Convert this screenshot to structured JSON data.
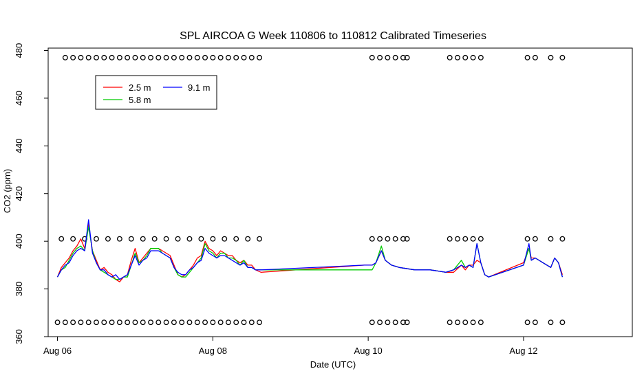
{
  "chart_data": {
    "type": "line",
    "title": "SPL AIRCOA G  Week 110806 to 110812  Calibrated Timeseries",
    "xlabel": "Date (UTC)",
    "ylabel": "CO2 (ppm)",
    "xlim": [
      -0.12,
      7.4
    ],
    "ylim": [
      360,
      481
    ],
    "x_units": "days since Aug 06 00:00 UTC",
    "xticks": [
      {
        "value": 0,
        "label": "Aug 06"
      },
      {
        "value": 2,
        "label": "Aug 08"
      },
      {
        "value": 4,
        "label": "Aug 10"
      },
      {
        "value": 6,
        "label": "Aug 12"
      }
    ],
    "yticks": [
      360,
      380,
      400,
      420,
      440,
      460,
      480
    ],
    "grid": false,
    "legend": {
      "placement": "top-left"
    },
    "colors": {
      "2.5 m": "#ff0000",
      "5.8 m": "#00cc00",
      "9.1 m": "#0000ff"
    },
    "series": [
      {
        "name": "2.5 m",
        "x": [
          0.0,
          0.05,
          0.1,
          0.15,
          0.2,
          0.25,
          0.3,
          0.35,
          0.4,
          0.45,
          0.5,
          0.55,
          0.6,
          0.65,
          0.7,
          0.75,
          0.8,
          0.85,
          0.9,
          0.95,
          1.0,
          1.05,
          1.1,
          1.15,
          1.2,
          1.25,
          1.3,
          1.35,
          1.4,
          1.45,
          1.5,
          1.55,
          1.6,
          1.65,
          1.7,
          1.75,
          1.8,
          1.85,
          1.9,
          1.95,
          2.0,
          2.05,
          2.1,
          2.15,
          2.2,
          2.25,
          2.3,
          2.35,
          2.4,
          2.45,
          2.5,
          2.55,
          2.62,
          3.95,
          4.05,
          4.1,
          4.17,
          4.22,
          4.3,
          4.4,
          4.6,
          4.8,
          5.0,
          5.1,
          5.2,
          5.25,
          5.3,
          5.35,
          5.4,
          5.45,
          5.5,
          5.55,
          6.0,
          6.07,
          6.1,
          6.15,
          6.25,
          6.35,
          6.4,
          6.45,
          6.5
        ],
        "y": [
          385,
          389,
          391,
          393,
          396,
          398,
          401,
          397,
          407,
          396,
          392,
          388,
          389,
          387,
          386,
          384,
          383,
          385,
          386,
          392,
          397,
          391,
          393,
          395,
          397,
          397,
          397,
          396,
          395,
          394,
          390,
          386,
          385,
          386,
          388,
          390,
          393,
          394,
          400,
          397,
          396,
          394,
          396,
          395,
          394,
          394,
          392,
          391,
          392,
          390,
          390,
          388,
          387,
          390,
          390,
          391,
          396,
          392,
          390,
          389,
          388,
          388,
          387,
          387,
          390,
          388,
          390,
          390,
          392,
          391,
          386,
          385,
          391,
          397,
          393,
          393,
          391,
          389,
          393,
          391,
          386
        ]
      },
      {
        "name": "5.8 m",
        "x": [
          0.0,
          0.05,
          0.1,
          0.15,
          0.2,
          0.25,
          0.3,
          0.35,
          0.4,
          0.45,
          0.5,
          0.55,
          0.6,
          0.65,
          0.7,
          0.75,
          0.8,
          0.85,
          0.9,
          0.95,
          1.0,
          1.05,
          1.1,
          1.15,
          1.2,
          1.25,
          1.3,
          1.35,
          1.4,
          1.45,
          1.5,
          1.55,
          1.6,
          1.65,
          1.7,
          1.75,
          1.8,
          1.85,
          1.9,
          1.95,
          2.0,
          2.05,
          2.1,
          2.15,
          2.2,
          2.25,
          2.3,
          2.35,
          2.4,
          2.45,
          2.5,
          2.55,
          2.62,
          3.95,
          4.05,
          4.1,
          4.17,
          4.22,
          4.3,
          4.4,
          4.6,
          4.8,
          5.0,
          5.1,
          5.2,
          5.25,
          5.3,
          5.35,
          5.4,
          5.45,
          5.5,
          5.55,
          6.0,
          6.07,
          6.1,
          6.15,
          6.25,
          6.35,
          6.4,
          6.45,
          6.5
        ],
        "y": [
          385,
          388,
          389,
          392,
          395,
          397,
          398,
          396,
          406,
          396,
          391,
          388,
          387,
          386,
          385,
          384,
          384,
          385,
          385,
          390,
          395,
          391,
          392,
          394,
          397,
          397,
          397,
          395,
          394,
          393,
          389,
          386,
          385,
          385,
          387,
          389,
          391,
          393,
          399,
          396,
          395,
          393,
          395,
          395,
          393,
          393,
          392,
          390,
          392,
          389,
          389,
          388,
          388,
          388,
          388,
          391,
          398,
          392,
          390,
          389,
          388,
          388,
          387,
          388,
          392,
          389,
          390,
          389,
          399,
          391,
          386,
          385,
          390,
          397,
          392,
          393,
          391,
          389,
          393,
          391,
          385
        ]
      },
      {
        "name": "9.1 m",
        "x": [
          0.0,
          0.05,
          0.1,
          0.15,
          0.2,
          0.25,
          0.3,
          0.35,
          0.4,
          0.45,
          0.5,
          0.55,
          0.6,
          0.65,
          0.7,
          0.75,
          0.8,
          0.85,
          0.9,
          0.95,
          1.0,
          1.05,
          1.1,
          1.15,
          1.2,
          1.25,
          1.3,
          1.35,
          1.4,
          1.45,
          1.5,
          1.55,
          1.6,
          1.65,
          1.7,
          1.75,
          1.8,
          1.85,
          1.9,
          1.95,
          2.0,
          2.05,
          2.1,
          2.15,
          2.2,
          2.25,
          2.3,
          2.35,
          2.4,
          2.45,
          2.5,
          2.55,
          2.62,
          3.95,
          4.05,
          4.1,
          4.17,
          4.22,
          4.3,
          4.4,
          4.6,
          4.8,
          5.0,
          5.1,
          5.2,
          5.25,
          5.3,
          5.35,
          5.4,
          5.45,
          5.5,
          5.55,
          6.0,
          6.07,
          6.1,
          6.15,
          6.25,
          6.35,
          6.4,
          6.45,
          6.5
        ],
        "y": [
          385,
          388,
          390,
          391,
          394,
          396,
          397,
          396,
          409,
          395,
          391,
          388,
          388,
          386,
          385,
          386,
          384,
          385,
          386,
          390,
          394,
          390,
          392,
          393,
          396,
          396,
          396,
          395,
          394,
          393,
          389,
          387,
          386,
          386,
          388,
          389,
          391,
          392,
          397,
          395,
          394,
          393,
          394,
          394,
          393,
          392,
          391,
          390,
          391,
          389,
          389,
          388,
          388,
          390,
          390,
          391,
          396,
          392,
          390,
          389,
          388,
          388,
          387,
          388,
          390,
          389,
          390,
          389,
          399,
          391,
          386,
          385,
          390,
          399,
          392,
          393,
          391,
          389,
          393,
          391,
          385
        ]
      }
    ],
    "markers": {
      "symbol": "open-circle",
      "upper": {
        "y": 477,
        "x": [
          0.1,
          0.2,
          0.3,
          0.4,
          0.5,
          0.6,
          0.7,
          0.8,
          0.9,
          1.0,
          1.1,
          1.2,
          1.3,
          1.4,
          1.5,
          1.6,
          1.7,
          1.8,
          1.9,
          2.0,
          2.1,
          2.2,
          2.3,
          2.4,
          2.5,
          2.6,
          4.05,
          4.15,
          4.25,
          4.35,
          4.45,
          4.5,
          5.05,
          5.15,
          5.25,
          5.35,
          5.45,
          6.05,
          6.15,
          6.35,
          6.5
        ]
      },
      "middle": {
        "y": 401,
        "x": [
          0.05,
          0.2,
          0.35,
          0.5,
          0.65,
          0.8,
          0.95,
          1.1,
          1.25,
          1.4,
          1.55,
          1.7,
          1.85,
          2.0,
          2.15,
          2.3,
          2.45,
          2.6,
          4.05,
          4.15,
          4.25,
          4.35,
          4.45,
          4.5,
          5.05,
          5.15,
          5.25,
          5.35,
          5.45,
          6.05,
          6.15,
          6.35,
          6.5
        ]
      },
      "lower": {
        "y": 366,
        "x": [
          0.0,
          0.1,
          0.2,
          0.3,
          0.4,
          0.5,
          0.6,
          0.7,
          0.8,
          0.9,
          1.0,
          1.1,
          1.2,
          1.3,
          1.4,
          1.5,
          1.6,
          1.7,
          1.8,
          1.9,
          2.0,
          2.1,
          2.2,
          2.3,
          2.4,
          2.5,
          2.6,
          4.05,
          4.15,
          4.25,
          4.35,
          4.45,
          4.5,
          5.05,
          5.15,
          5.25,
          5.35,
          5.45,
          6.05,
          6.15,
          6.35,
          6.5
        ]
      }
    }
  }
}
